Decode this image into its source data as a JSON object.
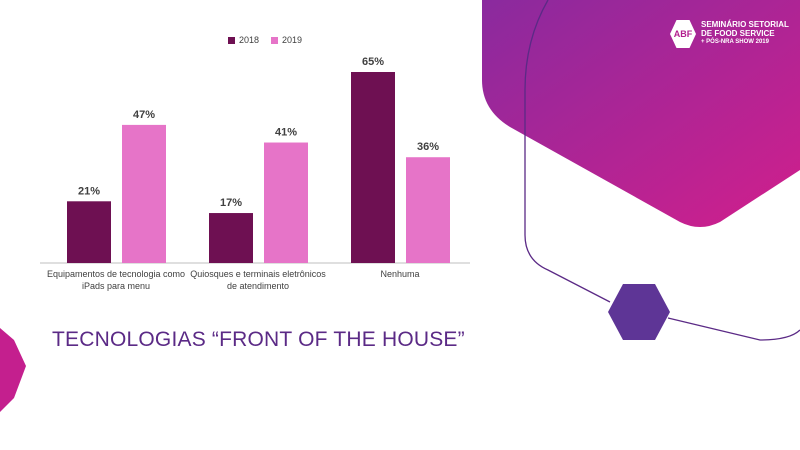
{
  "slide": {
    "title": "TECNOLOGIAS “FRONT OF THE HOUSE”"
  },
  "logo": {
    "badge": "ABF",
    "line1": "SEMINÁRIO SETORIAL",
    "line2": "DE FOOD SERVICE",
    "line3": "+ PÓS-NRA SHOW 2019"
  },
  "theme": {
    "accent_magenta": "#b21f8e",
    "accent_purple": "#5b2a86",
    "hexagon": "#5e3596"
  },
  "chart_data": {
    "type": "bar",
    "categories": [
      "Equipamentos de tecnologia como iPads para menu",
      "Quiosques e terminais eletrônicos de atendimento",
      "Nenhuma"
    ],
    "category_lines": [
      [
        "Equipamentos de tecnologia como",
        "iPads para menu"
      ],
      [
        "Quiosques e terminais eletrônicos",
        "de atendimento"
      ],
      [
        "Nenhuma"
      ]
    ],
    "series": [
      {
        "name": "2018",
        "values": [
          21,
          17,
          65
        ],
        "labels": [
          "21%",
          "17%",
          "65%"
        ],
        "color": "#6e1052"
      },
      {
        "name": "2019",
        "values": [
          47,
          41,
          36
        ],
        "labels": [
          "47%",
          "41%",
          "36%"
        ],
        "color": "#e674c8"
      }
    ],
    "ylim": [
      0,
      70
    ],
    "legend": "top-center",
    "grid": false
  }
}
